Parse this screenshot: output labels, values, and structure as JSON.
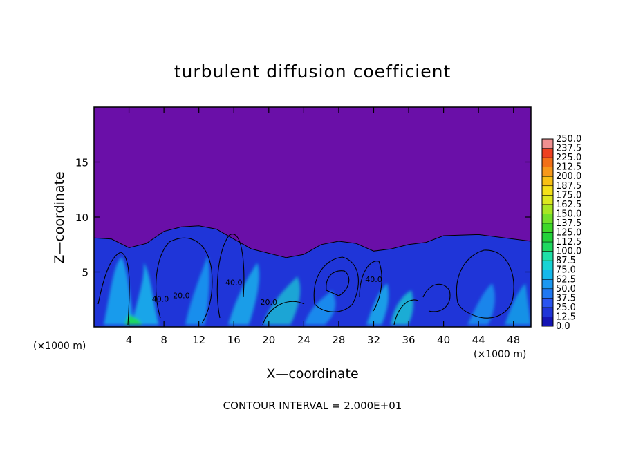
{
  "chart_data": {
    "type": "heatmap",
    "title": "turbulent diffusion coefficient",
    "xlabel": "X—coordinate",
    "ylabel": "Z—coordinate",
    "x_unit_left": "(×1000 m)",
    "x_unit_right": "(×1000 m)",
    "xlim": [
      0,
      50
    ],
    "ylim": [
      0,
      20
    ],
    "x_ticks": [
      4,
      8,
      12,
      16,
      20,
      24,
      28,
      32,
      36,
      40,
      44,
      48
    ],
    "y_ticks": [
      5,
      10,
      15
    ],
    "contour_note": "CONTOUR INTERVAL = 2.000E+01",
    "contour_labels": [
      {
        "x": 7.6,
        "z": 2.3,
        "text": "40.0"
      },
      {
        "x": 32.0,
        "z": 4.1,
        "text": "40.0"
      },
      {
        "x": 16.0,
        "z": 3.8,
        "text": "40.0"
      },
      {
        "x": 10.0,
        "z": 2.6,
        "text": "20.0"
      },
      {
        "x": 20.0,
        "z": 2.0,
        "text": "20.0"
      }
    ],
    "colorbar": {
      "levels": [
        "0.0",
        "12.5",
        "25.0",
        "37.5",
        "50.0",
        "62.5",
        "75.0",
        "87.5",
        "100.0",
        "112.5",
        "125.0",
        "137.5",
        "150.0",
        "162.5",
        "175.0",
        "187.5",
        "200.0",
        "212.5",
        "225.0",
        "237.5",
        "250.0"
      ],
      "colors": [
        "#6a0fa8",
        "#1515b4",
        "#1f35d8",
        "#2a55f0",
        "#1f78f2",
        "#1b98f0",
        "#15b8ec",
        "#17d4d4",
        "#1ee0a8",
        "#1fd860",
        "#22d23a",
        "#3ed82a",
        "#72e02a",
        "#a8e622",
        "#dce81e",
        "#f4e018",
        "#f8c014",
        "#f6981a",
        "#f27018",
        "#ee4020",
        "#f09090"
      ]
    },
    "field": {
      "background_color": "#6a0fa8",
      "boundary_layer_top_km": [
        8.1,
        8.0,
        7.2,
        7.6,
        8.7,
        9.1,
        9.2,
        8.9,
        8.0,
        7.1,
        6.7,
        6.3,
        6.6,
        7.5,
        7.8,
        7.6,
        6.9,
        7.1,
        7.5,
        7.7,
        8.3,
        8.4,
        7.8
      ],
      "boundary_layer_x_km": [
        0,
        2,
        4,
        6,
        8,
        10,
        12,
        14,
        16,
        18,
        20,
        22,
        24,
        26,
        28,
        30,
        32,
        34,
        36,
        38,
        40,
        44,
        50
      ]
    }
  }
}
